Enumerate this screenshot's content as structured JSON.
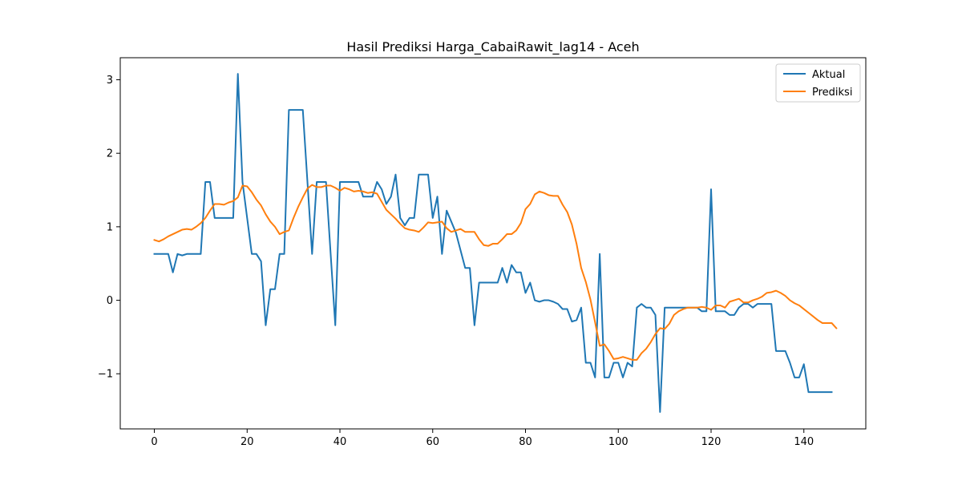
{
  "chart_data": {
    "type": "line",
    "title": "Hasil Prediksi Harga_CabaiRawit_lag14 - Aceh",
    "xlabel": "",
    "ylabel": "",
    "xlim": [
      -7.35,
      153.35
    ],
    "ylim": [
      -1.75,
      3.3
    ],
    "xticks": [
      0,
      20,
      40,
      60,
      80,
      100,
      120,
      140
    ],
    "xtick_labels": [
      "0",
      "20",
      "40",
      "60",
      "80",
      "100",
      "120",
      "140"
    ],
    "yticks": [
      -1,
      0,
      1,
      2,
      3
    ],
    "ytick_labels": [
      "−1",
      "0",
      "1",
      "2",
      "3"
    ],
    "grid": false,
    "legend": "top-right",
    "series": [
      {
        "name": "Aktual",
        "color": "#1f77b4",
        "values": [
          0.63,
          0.63,
          0.63,
          0.63,
          0.38,
          0.63,
          0.61,
          0.63,
          0.63,
          0.63,
          0.63,
          1.61,
          1.61,
          1.12,
          1.12,
          1.12,
          1.12,
          1.12,
          3.08,
          1.61,
          1.12,
          0.63,
          0.63,
          0.53,
          -0.34,
          0.15,
          0.15,
          0.63,
          0.63,
          2.59,
          2.59,
          2.59,
          2.59,
          1.61,
          0.63,
          1.61,
          1.61,
          1.61,
          0.63,
          -0.34,
          1.61,
          1.61,
          1.61,
          1.61,
          1.61,
          1.41,
          1.41,
          1.41,
          1.61,
          1.51,
          1.31,
          1.41,
          1.71,
          1.12,
          1.02,
          1.12,
          1.12,
          1.71,
          1.71,
          1.71,
          1.12,
          1.41,
          0.63,
          1.22,
          1.07,
          0.92,
          0.68,
          0.44,
          0.44,
          -0.34,
          0.24,
          0.24,
          0.24,
          0.24,
          0.24,
          0.44,
          0.24,
          0.48,
          0.38,
          0.38,
          0.1,
          0.24,
          0.0,
          -0.02,
          0.0,
          0.0,
          -0.02,
          -0.05,
          -0.12,
          -0.12,
          -0.29,
          -0.27,
          -0.1,
          -0.85,
          -0.85,
          -1.05,
          0.63,
          -1.05,
          -1.05,
          -0.85,
          -0.85,
          -1.05,
          -0.85,
          -0.9,
          -0.1,
          -0.05,
          -0.1,
          -0.1,
          -0.2,
          -1.52,
          -0.1,
          -0.1,
          -0.1,
          -0.1,
          -0.1,
          -0.1,
          -0.1,
          -0.1,
          -0.15,
          -0.15,
          1.51,
          -0.15,
          -0.15,
          -0.15,
          -0.2,
          -0.2,
          -0.1,
          -0.05,
          -0.05,
          -0.1,
          -0.05,
          -0.05,
          -0.05,
          -0.05,
          -0.69,
          -0.69,
          -0.69,
          -0.85,
          -1.05,
          -1.05,
          -0.87,
          -1.25,
          -1.25,
          -1.25,
          -1.25,
          -1.25,
          -1.25
        ]
      },
      {
        "name": "Prediksi",
        "color": "#ff7f0e",
        "values": [
          0.82,
          0.8,
          0.83,
          0.87,
          0.9,
          0.93,
          0.96,
          0.97,
          0.96,
          1.0,
          1.05,
          1.12,
          1.22,
          1.31,
          1.31,
          1.3,
          1.33,
          1.35,
          1.4,
          1.56,
          1.55,
          1.47,
          1.37,
          1.29,
          1.17,
          1.07,
          1.0,
          0.9,
          0.93,
          0.95,
          1.12,
          1.27,
          1.4,
          1.52,
          1.57,
          1.54,
          1.54,
          1.56,
          1.56,
          1.53,
          1.49,
          1.53,
          1.51,
          1.48,
          1.49,
          1.48,
          1.46,
          1.47,
          1.45,
          1.34,
          1.23,
          1.17,
          1.11,
          1.04,
          0.98,
          0.96,
          0.95,
          0.93,
          0.99,
          1.06,
          1.05,
          1.06,
          1.07,
          0.98,
          0.93,
          0.95,
          0.97,
          0.93,
          0.93,
          0.93,
          0.83,
          0.75,
          0.74,
          0.77,
          0.77,
          0.83,
          0.9,
          0.9,
          0.95,
          1.05,
          1.24,
          1.31,
          1.44,
          1.48,
          1.46,
          1.43,
          1.42,
          1.42,
          1.3,
          1.2,
          1.03,
          0.77,
          0.44,
          0.25,
          0.01,
          -0.3,
          -0.62,
          -0.6,
          -0.69,
          -0.8,
          -0.79,
          -0.77,
          -0.79,
          -0.81,
          -0.81,
          -0.72,
          -0.66,
          -0.57,
          -0.46,
          -0.38,
          -0.39,
          -0.32,
          -0.2,
          -0.15,
          -0.12,
          -0.1,
          -0.1,
          -0.1,
          -0.09,
          -0.1,
          -0.13,
          -0.07,
          -0.07,
          -0.1,
          -0.02,
          0.0,
          0.02,
          -0.03,
          -0.03,
          0.0,
          0.02,
          0.05,
          0.1,
          0.11,
          0.13,
          0.1,
          0.06,
          0.0,
          -0.04,
          -0.07,
          -0.12,
          -0.17,
          -0.22,
          -0.27,
          -0.31,
          -0.31,
          -0.31,
          -0.38
        ]
      }
    ]
  }
}
